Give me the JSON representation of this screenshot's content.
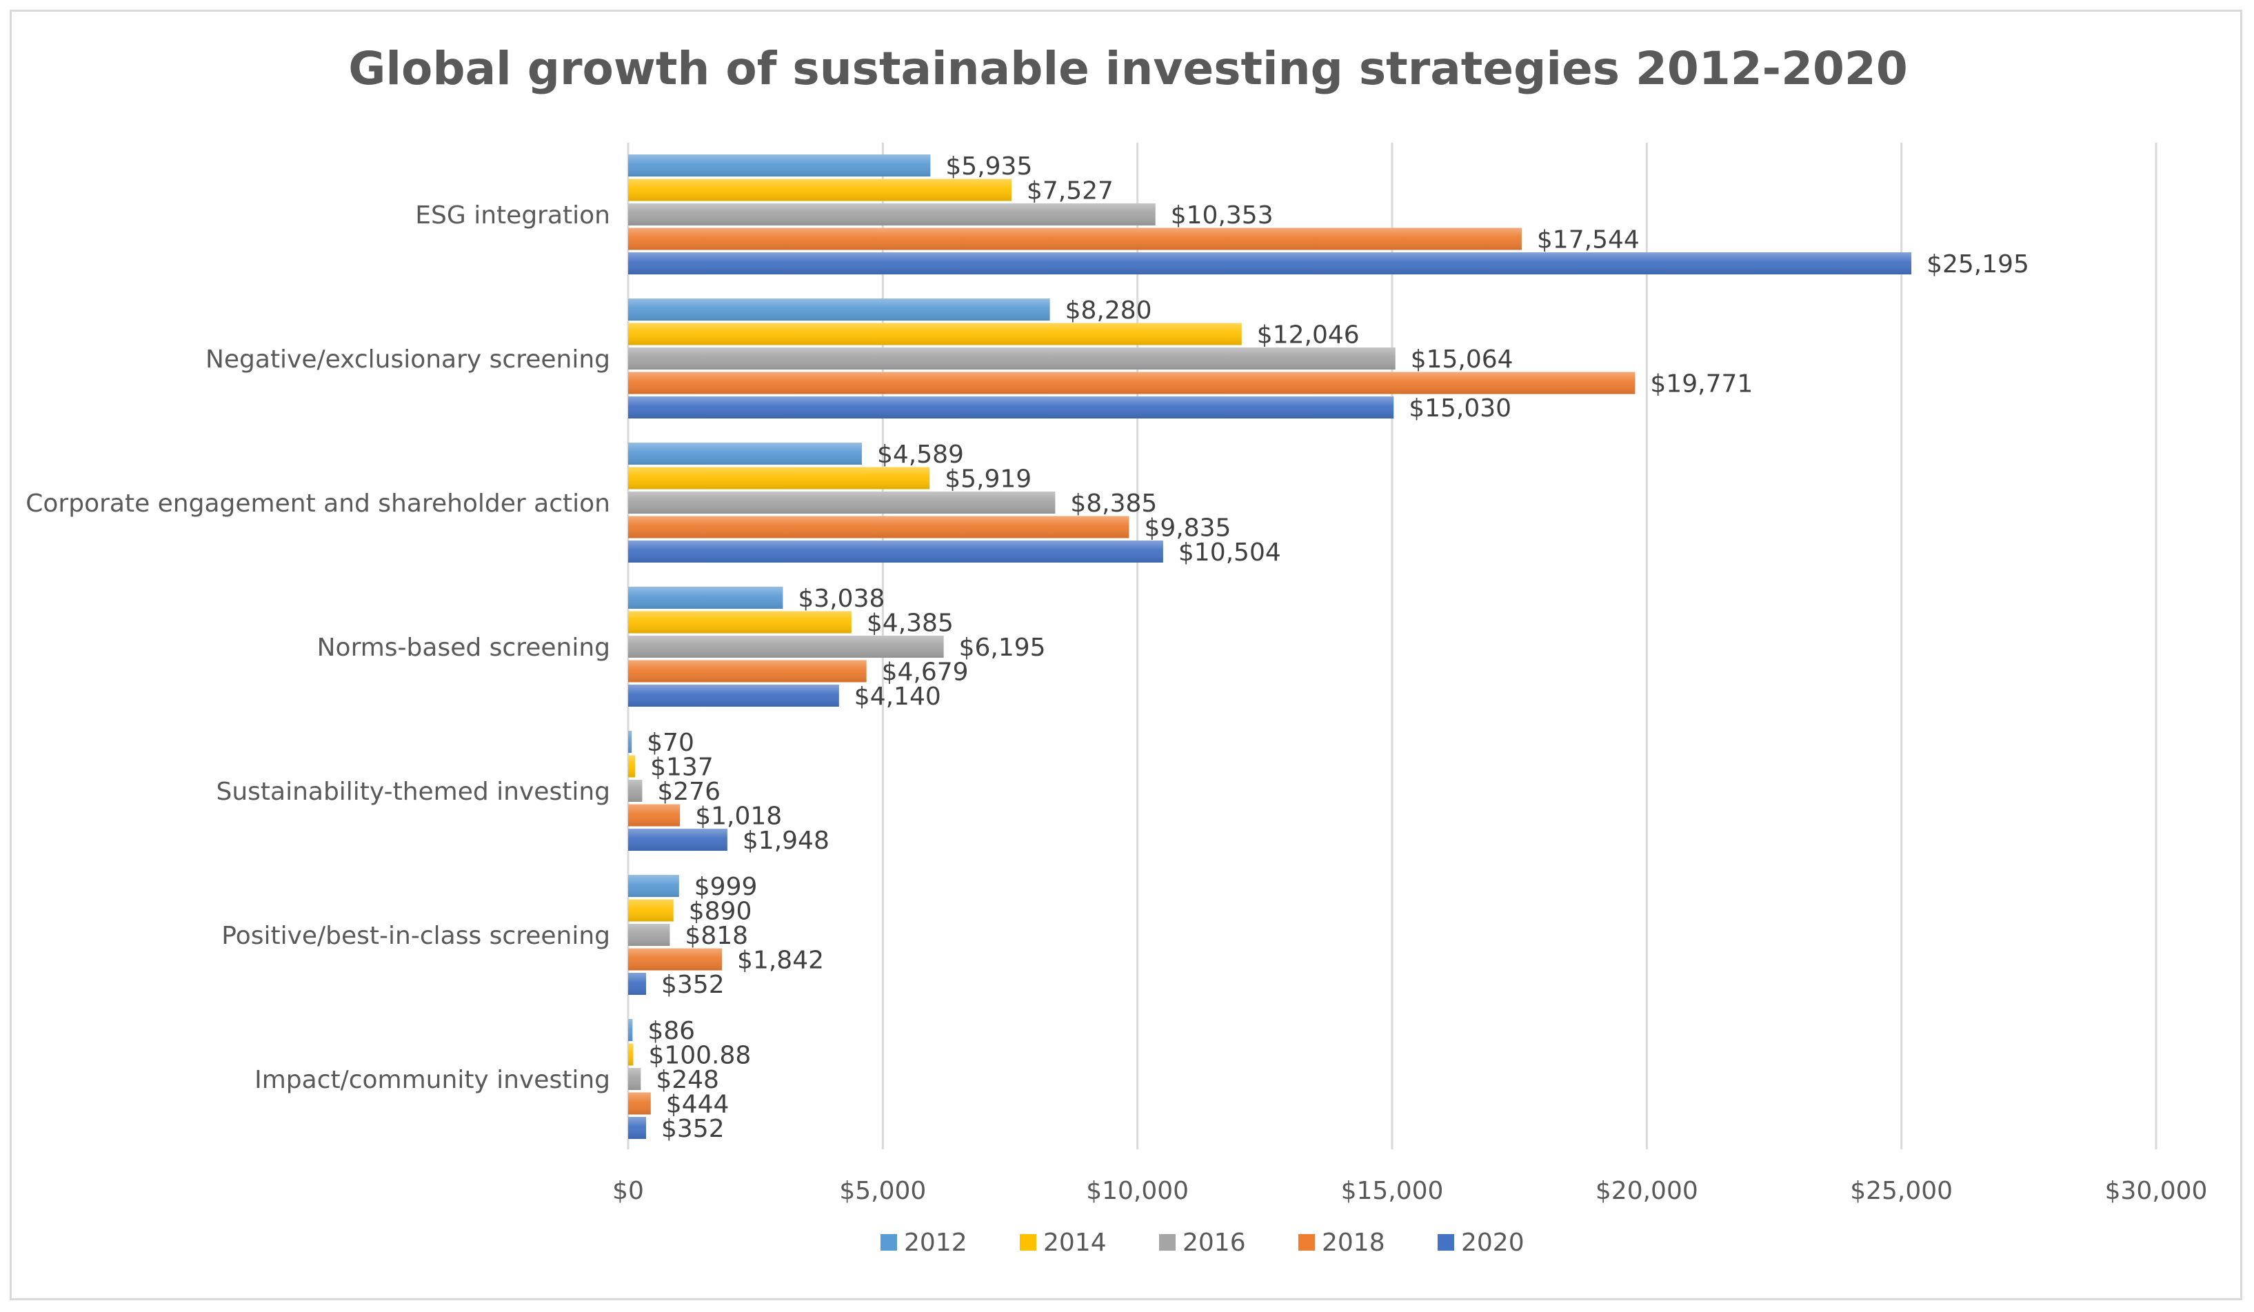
{
  "chart_data": {
    "type": "bar",
    "orientation": "horizontal",
    "title": "Global growth of sustainable investing strategies 2012-2020",
    "xlabel": "",
    "ylabel": "",
    "xlim": [
      0,
      30000
    ],
    "x_ticks": [
      0,
      5000,
      10000,
      15000,
      20000,
      25000,
      30000
    ],
    "x_tick_labels": [
      "$0",
      "$5,000",
      "$10,000",
      "$15,000",
      "$20,000",
      "$25,000",
      "$30,000"
    ],
    "grid": true,
    "legend_position": "bottom",
    "categories": [
      "ESG integration",
      "Negative/exclusionary screening",
      "Corporate engagement and shareholder action",
      "Norms-based screening",
      "Sustainability-themed investing",
      "Positive/best-in-class screening",
      "Impact/community investing"
    ],
    "series": [
      {
        "name": "2012",
        "color": "#5b9bd5",
        "values": [
          5935,
          8280,
          4589,
          3038,
          70,
          999,
          86
        ],
        "labels": [
          "$5,935",
          "$8,280",
          "$4,589",
          "$3,038",
          "$70",
          "$999",
          "$86"
        ]
      },
      {
        "name": "2014",
        "color": "#ffc000",
        "values": [
          7527,
          12046,
          5919,
          4385,
          137,
          890,
          100.88
        ],
        "labels": [
          "$7,527",
          "$12,046",
          "$5,919",
          "$4,385",
          "$137",
          "$890",
          "$100.88"
        ]
      },
      {
        "name": "2016",
        "color": "#a5a5a5",
        "values": [
          10353,
          15064,
          8385,
          6195,
          276,
          818,
          248
        ],
        "labels": [
          "$10,353",
          "$15,064",
          "$8,385",
          "$6,195",
          "$276",
          "$818",
          "$248"
        ]
      },
      {
        "name": "2018",
        "color": "#ed7d31",
        "values": [
          17544,
          19771,
          9835,
          4679,
          1018,
          1842,
          444
        ],
        "labels": [
          "$17,544",
          "$19,771",
          "$9,835",
          "$4,679",
          "$1,018",
          "$1,842",
          "$444"
        ]
      },
      {
        "name": "2020",
        "color": "#4472c4",
        "values": [
          25195,
          15030,
          10504,
          4140,
          1948,
          352,
          352
        ],
        "labels": [
          "$25,195",
          "$15,030",
          "$10,504",
          "$4,140",
          "$1,948",
          "$352",
          "$352"
        ]
      }
    ]
  }
}
